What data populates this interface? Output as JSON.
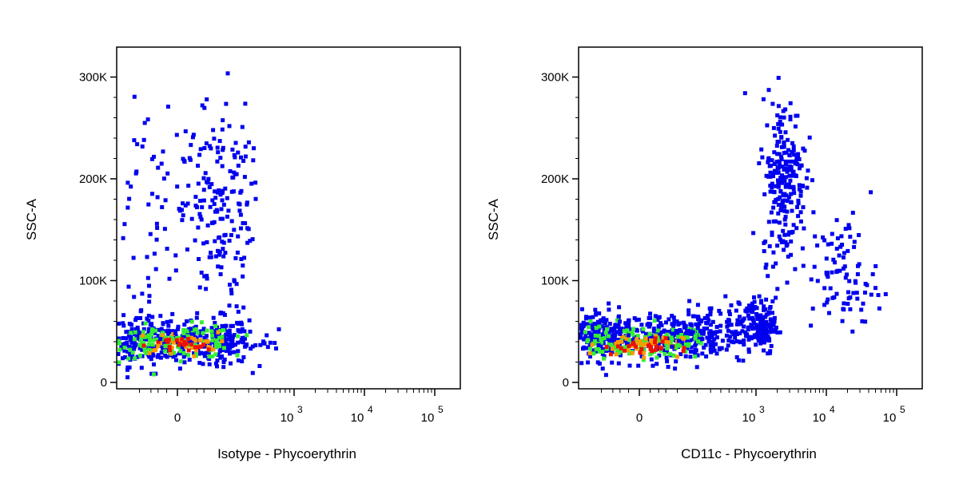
{
  "chart_data": [
    {
      "type": "scatter",
      "title": "",
      "xlabel": "Isotype - Phycoerythrin",
      "ylabel": "SSC-A",
      "x_scale": "biexponential (logicle)",
      "x_ticks": [
        {
          "label": "0",
          "exp": ""
        },
        {
          "label": "10",
          "exp": "3"
        },
        {
          "label": "10",
          "exp": "4"
        },
        {
          "label": "10",
          "exp": "5"
        }
      ],
      "y_ticks": [
        "0",
        "100K",
        "200K",
        "300K"
      ],
      "ylim": [
        0,
        320000
      ],
      "grid": false,
      "density_colors": {
        "low": "#0000ee",
        "medium": "#33ee33",
        "high": "#ff9900",
        "highest": "#ee1100"
      },
      "populations": [
        {
          "name": "",
          "x_center": 0,
          "y_center": 40000,
          "x_spread": 150,
          "y_spread": 12000,
          "count": 420,
          "color": "#0000ee"
        },
        {
          "name": "",
          "x_center": 0,
          "y_center": 40000,
          "x_spread": 90,
          "y_spread": 8000,
          "count": 120,
          "color": "#33ee33"
        },
        {
          "name": "",
          "x_center": 0,
          "y_center": 38000,
          "x_spread": 55,
          "y_spread": 5500,
          "count": 35,
          "color": "#ff9900"
        },
        {
          "name": "",
          "x_center": 0,
          "y_center": 36000,
          "x_spread": 40,
          "y_spread": 4000,
          "count": 22,
          "color": "#ee1100"
        },
        {
          "name": "",
          "x_center": 80,
          "y_center": 175000,
          "x_spread": 120,
          "y_spread": 55000,
          "count": 240,
          "color": "#0000ee"
        },
        {
          "name": "",
          "x_center": 400,
          "y_center": 40000,
          "x_spread": 200,
          "y_spread": 6000,
          "count": 12,
          "color": "#0000ee"
        }
      ]
    },
    {
      "type": "scatter",
      "title": "",
      "xlabel": "CD11c - Phycoerythrin",
      "ylabel": "SSC-A",
      "x_scale": "biexponential (logicle)",
      "x_ticks": [
        {
          "label": "0",
          "exp": ""
        },
        {
          "label": "10",
          "exp": "3"
        },
        {
          "label": "10",
          "exp": "4"
        },
        {
          "label": "10",
          "exp": "5"
        }
      ],
      "y_ticks": [
        "0",
        "100K",
        "200K",
        "300K"
      ],
      "ylim": [
        0,
        320000
      ],
      "grid": false,
      "density_colors": {
        "low": "#0000ee",
        "medium": "#33ee33",
        "high": "#ff9900",
        "highest": "#ee1100"
      },
      "populations": [
        {
          "name": "",
          "x_center": 0,
          "y_center": 45000,
          "x_spread": 180,
          "y_spread": 12000,
          "count": 480,
          "color": "#0000ee"
        },
        {
          "name": "",
          "x_center": 0,
          "y_center": 40000,
          "x_spread": 100,
          "y_spread": 8000,
          "count": 130,
          "color": "#33ee33"
        },
        {
          "name": "",
          "x_center": 0,
          "y_center": 37000,
          "x_spread": 60,
          "y_spread": 5500,
          "count": 40,
          "color": "#ff9900"
        },
        {
          "name": "",
          "x_center": 0,
          "y_center": 35000,
          "x_spread": 45,
          "y_spread": 4000,
          "count": 28,
          "color": "#ee1100"
        },
        {
          "name": "",
          "x_center": 900,
          "y_center": 55000,
          "x_spread": 500,
          "y_spread": 14000,
          "count": 220,
          "color": "#0000ee"
        },
        {
          "name": "",
          "x_center": 2500,
          "y_center": 200000,
          "x_spread": 1200,
          "y_spread": 40000,
          "count": 240,
          "color": "#0000ee"
        },
        {
          "name": "",
          "x_center": 18000,
          "y_center": 105000,
          "x_spread": 15000,
          "y_spread": 30000,
          "count": 90,
          "color": "#0000ee"
        }
      ]
    }
  ]
}
